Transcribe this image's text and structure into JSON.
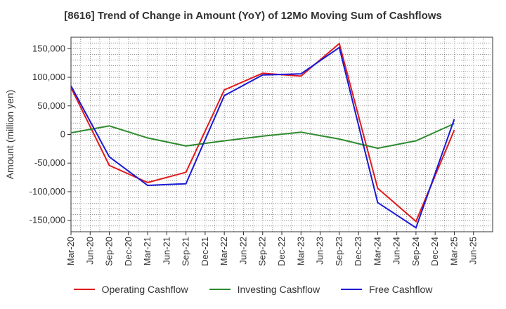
{
  "chart_data": {
    "type": "line",
    "title": "[8616]  Trend of Change in Amount (YoY) of 12Mo Moving Sum of Cashflows",
    "xlabel": "",
    "ylabel": "Amount (million yen)",
    "categories": [
      "Mar-20",
      "Jun-20",
      "Sep-20",
      "Dec-20",
      "Mar-21",
      "Jun-21",
      "Sep-21",
      "Dec-21",
      "Mar-22",
      "Jun-22",
      "Sep-22",
      "Dec-22",
      "Mar-23",
      "Jun-23",
      "Sep-23",
      "Dec-23",
      "Mar-24",
      "Jun-24",
      "Sep-24",
      "Dec-24",
      "Mar-25",
      "Jun-25"
    ],
    "ylim": [
      -170000,
      170000
    ],
    "yticks": [
      -150000,
      -100000,
      -50000,
      0,
      50000,
      100000,
      150000
    ],
    "ytick_labels": [
      "-150,000",
      "-100,000",
      "-50,000",
      "0",
      "50,000",
      "100,000",
      "150,000"
    ],
    "grid": true,
    "legend_position": "bottom",
    "series": [
      {
        "name": "Operating Cashflow",
        "color": "#e31a1c",
        "values": [
          82000,
          null,
          -54000,
          null,
          -84000,
          null,
          -66000,
          null,
          78000,
          null,
          107000,
          null,
          102000,
          null,
          159000,
          null,
          -94000,
          null,
          -152000,
          null,
          8000,
          null
        ]
      },
      {
        "name": "Investing Cashflow",
        "color": "#2e8b2e",
        "values": [
          3000,
          null,
          15000,
          null,
          -6000,
          null,
          -20000,
          null,
          -11000,
          null,
          -3000,
          null,
          4000,
          null,
          -8000,
          null,
          -24000,
          null,
          -11000,
          null,
          19000,
          null
        ]
      },
      {
        "name": "Free Cashflow",
        "color": "#1a1ad6",
        "values": [
          85000,
          null,
          -39000,
          null,
          -89000,
          null,
          -86000,
          null,
          68000,
          null,
          104000,
          null,
          106000,
          null,
          152000,
          null,
          -119000,
          null,
          -163000,
          null,
          27000,
          null
        ]
      }
    ]
  }
}
